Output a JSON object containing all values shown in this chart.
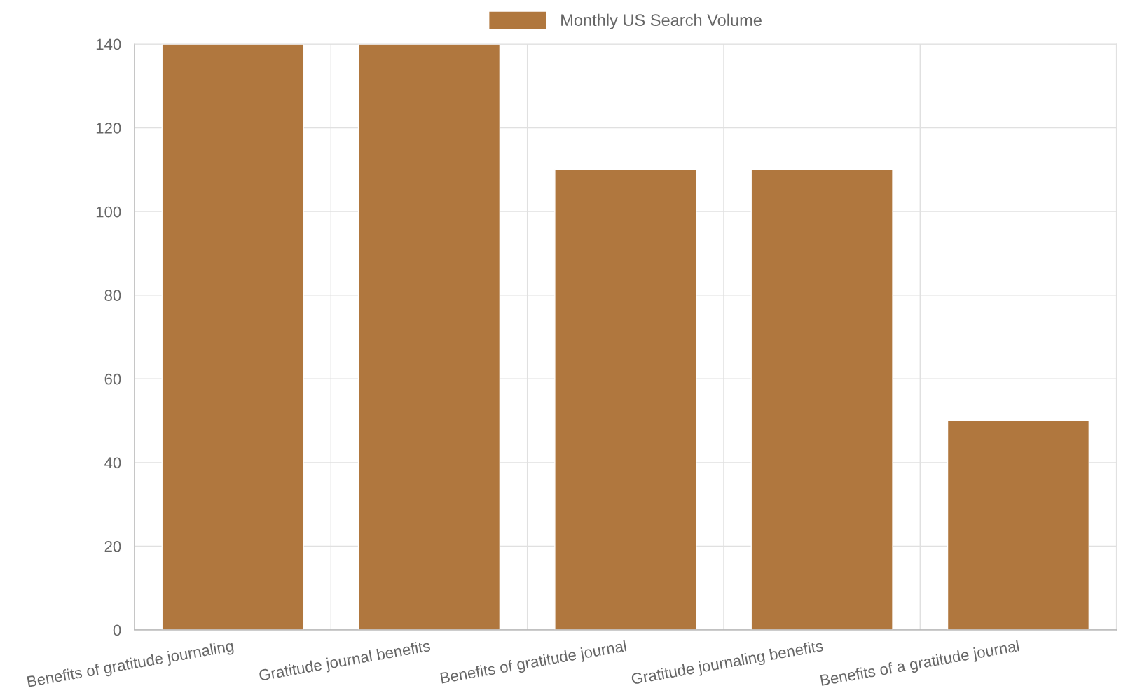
{
  "chart_data": {
    "type": "bar",
    "categories": [
      "Benefits of gratitude journaling",
      "Gratitude journal benefits",
      "Benefits of gratitude journal",
      "Gratitude journaling benefits",
      "Benefits of a gratitude journal"
    ],
    "series": [
      {
        "name": "Monthly US Search Volume",
        "color": "#b0773e",
        "values": [
          140,
          140,
          110,
          110,
          50
        ]
      }
    ],
    "ylim": [
      0,
      140
    ],
    "yticks": [
      0,
      20,
      40,
      60,
      80,
      100,
      120,
      140
    ],
    "grid": true,
    "legend": "top"
  }
}
